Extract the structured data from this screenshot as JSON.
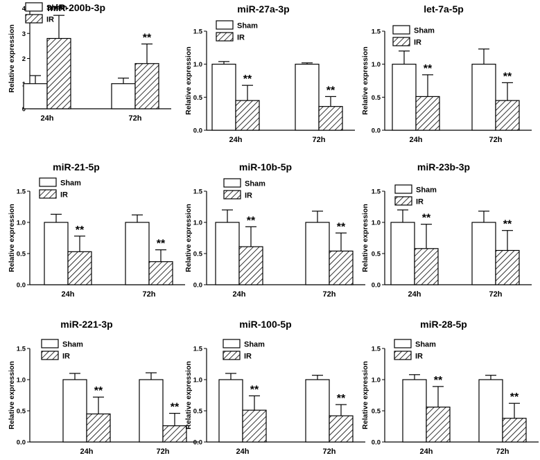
{
  "chart_data": [
    {
      "type": "bar",
      "title": "miR-200b-3p",
      "ylabel": "Relative expression",
      "categories": [
        "24h",
        "72h"
      ],
      "ylim": [
        0,
        4
      ],
      "yticks": [
        0,
        1,
        2,
        3,
        4
      ],
      "series": [
        {
          "name": "Sham",
          "values": [
            1.0,
            1.0
          ],
          "errors": [
            0.32,
            0.22
          ]
        },
        {
          "name": "IR",
          "values": [
            2.8,
            1.8
          ],
          "errors": [
            0.92,
            0.78
          ]
        }
      ],
      "annotations": [
        "**",
        "**"
      ],
      "legend": "top-left"
    },
    {
      "type": "bar",
      "title": "miR-27a-3p",
      "ylabel": "Relative expression",
      "categories": [
        "24h",
        "72h"
      ],
      "ylim": [
        0,
        1.5
      ],
      "yticks": [
        0.0,
        0.5,
        1.0,
        1.5
      ],
      "series": [
        {
          "name": "Sham",
          "values": [
            1.0,
            1.0
          ],
          "errors": [
            0.04,
            0.02
          ]
        },
        {
          "name": "IR",
          "values": [
            0.45,
            0.36
          ],
          "errors": [
            0.23,
            0.15
          ]
        }
      ],
      "annotations": [
        "**",
        "**"
      ],
      "legend": "top-left"
    },
    {
      "type": "bar",
      "title": "let-7a-5p",
      "ylabel": "Relative expression",
      "categories": [
        "24h",
        "72h"
      ],
      "ylim": [
        0,
        1.5
      ],
      "yticks": [
        0.0,
        0.5,
        1.0,
        1.5
      ],
      "series": [
        {
          "name": "Sham",
          "values": [
            1.0,
            1.0
          ],
          "errors": [
            0.2,
            0.23
          ]
        },
        {
          "name": "IR",
          "values": [
            0.51,
            0.45
          ],
          "errors": [
            0.33,
            0.27
          ]
        }
      ],
      "annotations": [
        "**",
        "**"
      ],
      "legend": "top-left"
    },
    {
      "type": "bar",
      "title": "miR-21-5p",
      "ylabel": "Relative expression",
      "categories": [
        "24h",
        "72h"
      ],
      "ylim": [
        0,
        1.5
      ],
      "yticks": [
        0.0,
        0.5,
        1.0,
        1.5
      ],
      "series": [
        {
          "name": "Sham",
          "values": [
            1.0,
            1.0
          ],
          "errors": [
            0.13,
            0.12
          ]
        },
        {
          "name": "IR",
          "values": [
            0.53,
            0.37
          ],
          "errors": [
            0.25,
            0.19
          ]
        }
      ],
      "annotations": [
        "**",
        "**"
      ],
      "legend": "top-left"
    },
    {
      "type": "bar",
      "title": "miR-10b-5p",
      "ylabel": "Relative expression",
      "categories": [
        "24h",
        "72h"
      ],
      "ylim": [
        0,
        1.5
      ],
      "yticks": [
        0.0,
        0.5,
        1.0,
        1.5
      ],
      "series": [
        {
          "name": "Sham",
          "values": [
            1.0,
            1.0
          ],
          "errors": [
            0.2,
            0.18
          ]
        },
        {
          "name": "IR",
          "values": [
            0.61,
            0.54
          ],
          "errors": [
            0.32,
            0.29
          ]
        }
      ],
      "annotations": [
        "**",
        "**"
      ],
      "legend": "top-left"
    },
    {
      "type": "bar",
      "title": "miR-23b-3p",
      "ylabel": "Relative expression",
      "categories": [
        "24h",
        "72h"
      ],
      "ylim": [
        0,
        1.5
      ],
      "yticks": [
        0.0,
        0.5,
        1.0,
        1.5
      ],
      "series": [
        {
          "name": "Sham",
          "values": [
            1.0,
            1.0
          ],
          "errors": [
            0.2,
            0.18
          ]
        },
        {
          "name": "IR",
          "values": [
            0.58,
            0.55
          ],
          "errors": [
            0.39,
            0.32
          ]
        }
      ],
      "annotations": [
        "**",
        "**"
      ],
      "legend": "top-left"
    },
    {
      "type": "bar",
      "title": "miR-221-3p",
      "ylabel": "Relative expression",
      "categories": [
        "24h",
        "72h"
      ],
      "ylim": [
        0,
        1.5
      ],
      "yticks": [
        0.0,
        0.5,
        1.0,
        1.5
      ],
      "series": [
        {
          "name": "Sham",
          "values": [
            1.0,
            1.0
          ],
          "errors": [
            0.1,
            0.11
          ]
        },
        {
          "name": "IR",
          "values": [
            0.45,
            0.26
          ],
          "errors": [
            0.27,
            0.2
          ]
        }
      ],
      "annotations": [
        "**",
        "**"
      ],
      "legend": "top-left"
    },
    {
      "type": "bar",
      "title": "miR-100-5p",
      "ylabel": "Relative expression",
      "categories": [
        "24h",
        "72h"
      ],
      "ylim": [
        0,
        1.5
      ],
      "yticks": [
        0.0,
        0.5,
        1.0,
        1.5
      ],
      "series": [
        {
          "name": "Sham",
          "values": [
            1.0,
            1.0
          ],
          "errors": [
            0.1,
            0.07
          ]
        },
        {
          "name": "IR",
          "values": [
            0.51,
            0.42
          ],
          "errors": [
            0.23,
            0.18
          ]
        }
      ],
      "annotations": [
        "**",
        "**"
      ],
      "legend": "top-left"
    },
    {
      "type": "bar",
      "title": "miR-28-5p",
      "ylabel": "Relative expression",
      "categories": [
        "24h",
        "72h"
      ],
      "ylim": [
        0,
        1.5
      ],
      "yticks": [
        0.0,
        0.5,
        1.0,
        1.5
      ],
      "series": [
        {
          "name": "Sham",
          "values": [
            1.0,
            1.0
          ],
          "errors": [
            0.08,
            0.07
          ]
        },
        {
          "name": "IR",
          "values": [
            0.56,
            0.38
          ],
          "errors": [
            0.33,
            0.24
          ]
        }
      ],
      "annotations": [
        "**",
        "**"
      ],
      "legend": "top-left"
    }
  ],
  "colors": {
    "sham_fill": "#ffffff",
    "ir_hatch": "#000000",
    "axis": "#000000"
  }
}
